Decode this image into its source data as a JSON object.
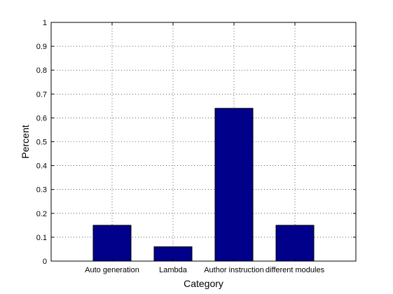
{
  "chart_data": {
    "type": "bar",
    "categories": [
      "Auto generation",
      "Lambda",
      "Author instruction",
      "different modules"
    ],
    "values": [
      0.15,
      0.06,
      0.64,
      0.15
    ],
    "xlabel": "Category",
    "ylabel": "Percent",
    "ylim": [
      0,
      1
    ],
    "yticks": [
      "0",
      "0.1",
      "0.2",
      "0.3",
      "0.4",
      "0.5",
      "0.6",
      "0.7",
      "0.8",
      "0.9",
      "1"
    ],
    "grid": "dotted",
    "bar_color": "#00008B",
    "axis_color": "#000000"
  }
}
